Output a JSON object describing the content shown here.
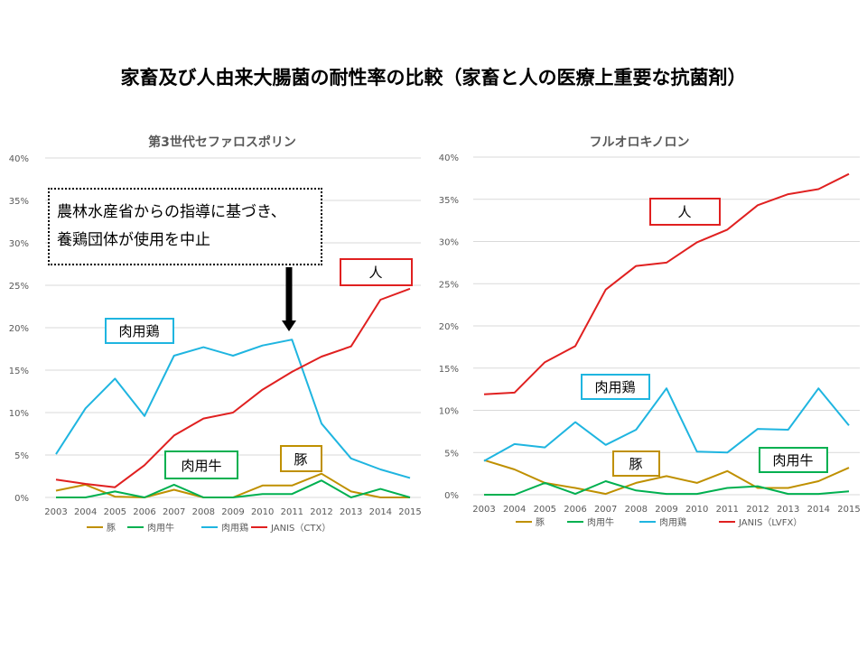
{
  "title": "家畜及び人由来大腸菌の耐性率の比較（家畜と人の医療上重要な抗菌剤）",
  "note": {
    "line1": "農林水産省からの指導に基づき、",
    "line2": "養鶏団体が使用を中止"
  },
  "colors": {
    "pig": "#bf9000",
    "cattle": "#00b050",
    "chicken": "#1fb5e0",
    "human": "#e02020",
    "grid": "#d9d9d9",
    "text": "#595959"
  },
  "chart_data": [
    {
      "type": "line",
      "title": "第3世代セファロスポリン",
      "x": [
        "2003",
        "2004",
        "2005",
        "2006",
        "2007",
        "2008",
        "2009",
        "2010",
        "2011",
        "2012",
        "2013",
        "2014",
        "2015"
      ],
      "ylim": [
        0,
        40
      ],
      "yticks": [
        "0%",
        "5%",
        "10%",
        "15%",
        "20%",
        "25%",
        "30%",
        "35%",
        "40%"
      ],
      "series": [
        {
          "name": "豚",
          "color": "#bf9000",
          "values": [
            0.8,
            1.5,
            0.1,
            0.0,
            0.9,
            0.0,
            0.0,
            1.4,
            1.4,
            2.8,
            0.7,
            0.0,
            0.0
          ]
        },
        {
          "name": "肉用牛",
          "color": "#00b050",
          "values": [
            0.0,
            0.0,
            0.7,
            0.0,
            1.5,
            0.0,
            0.0,
            0.4,
            0.4,
            2.0,
            0.0,
            1.0,
            0.0
          ]
        },
        {
          "name": "肉用鶏",
          "color": "#1fb5e0",
          "values": [
            5.1,
            10.5,
            14.0,
            9.6,
            16.7,
            17.7,
            16.7,
            17.9,
            18.6,
            8.7,
            4.6,
            3.3,
            2.3
          ]
        },
        {
          "name": "JANIS（CTX）",
          "color": "#e02020",
          "values": [
            2.1,
            1.6,
            1.2,
            3.8,
            7.3,
            9.3,
            10.0,
            12.7,
            14.8,
            16.6,
            17.8,
            23.3,
            24.6
          ]
        }
      ],
      "labels": {
        "human": "人",
        "chicken": "肉用鶏",
        "cattle": "肉用牛",
        "pig": "豚"
      }
    },
    {
      "type": "line",
      "title": "フルオロキノロン",
      "x": [
        "2003",
        "2004",
        "2005",
        "2006",
        "2007",
        "2008",
        "2009",
        "2010",
        "2011",
        "2012",
        "2013",
        "2014",
        "2015"
      ],
      "ylim": [
        0,
        40
      ],
      "yticks": [
        "0%",
        "5%",
        "10%",
        "15%",
        "20%",
        "25%",
        "30%",
        "35%",
        "40%"
      ],
      "series": [
        {
          "name": "豚",
          "color": "#bf9000",
          "values": [
            4.1,
            3.0,
            1.4,
            0.8,
            0.1,
            1.4,
            2.2,
            1.4,
            2.8,
            0.8,
            0.8,
            1.6,
            3.2
          ]
        },
        {
          "name": "肉用牛",
          "color": "#00b050",
          "values": [
            0.0,
            0.0,
            1.4,
            0.1,
            1.6,
            0.5,
            0.1,
            0.1,
            0.8,
            1.0,
            0.1,
            0.1,
            0.4
          ]
        },
        {
          "name": "肉用鶏",
          "color": "#1fb5e0",
          "values": [
            4.0,
            6.0,
            5.6,
            8.6,
            5.9,
            7.7,
            12.6,
            5.1,
            5.0,
            7.8,
            7.7,
            12.6,
            8.2
          ]
        },
        {
          "name": "JANIS（LVFX）",
          "color": "#e02020",
          "values": [
            11.9,
            12.1,
            15.7,
            17.6,
            24.3,
            27.1,
            27.5,
            29.9,
            31.4,
            34.3,
            35.6,
            36.2,
            38.0
          ]
        }
      ],
      "labels": {
        "human": "人",
        "chicken": "肉用鶏",
        "cattle": "肉用牛",
        "pig": "豚"
      }
    }
  ]
}
